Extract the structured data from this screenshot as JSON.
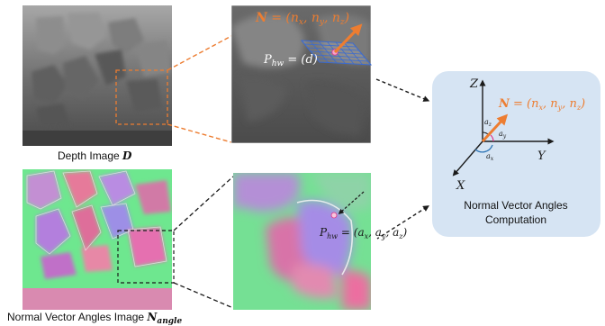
{
  "captions": {
    "depth_text": "Depth Image ",
    "depth_symbol": "D",
    "normal_text": "Normal Vector Angles Image ",
    "normal_symbol": "N",
    "normal_subscript": "angle"
  },
  "labels": {
    "normal_eq_top": "N = (nx, ny, nz)",
    "p_depth": "Phw = (d)",
    "p_angles": "Phw = (ax, ay, az)",
    "normal_eq_right": "N = (nx, ny, nz)",
    "axis_z": "Z",
    "axis_y": "Y",
    "axis_x": "X",
    "angle_z": "az",
    "angle_y": "ay",
    "angle_x": "ax",
    "box_title_line1": "Normal Vector Angles",
    "box_title_line2": "Computation"
  },
  "colors": {
    "orange_accent": "#ed7d31",
    "box_fill": "#d6e4f3",
    "axis_dark": "#1a1a1a",
    "angle_blue": "#2e75b6",
    "angle_pink": "#e0338a"
  }
}
